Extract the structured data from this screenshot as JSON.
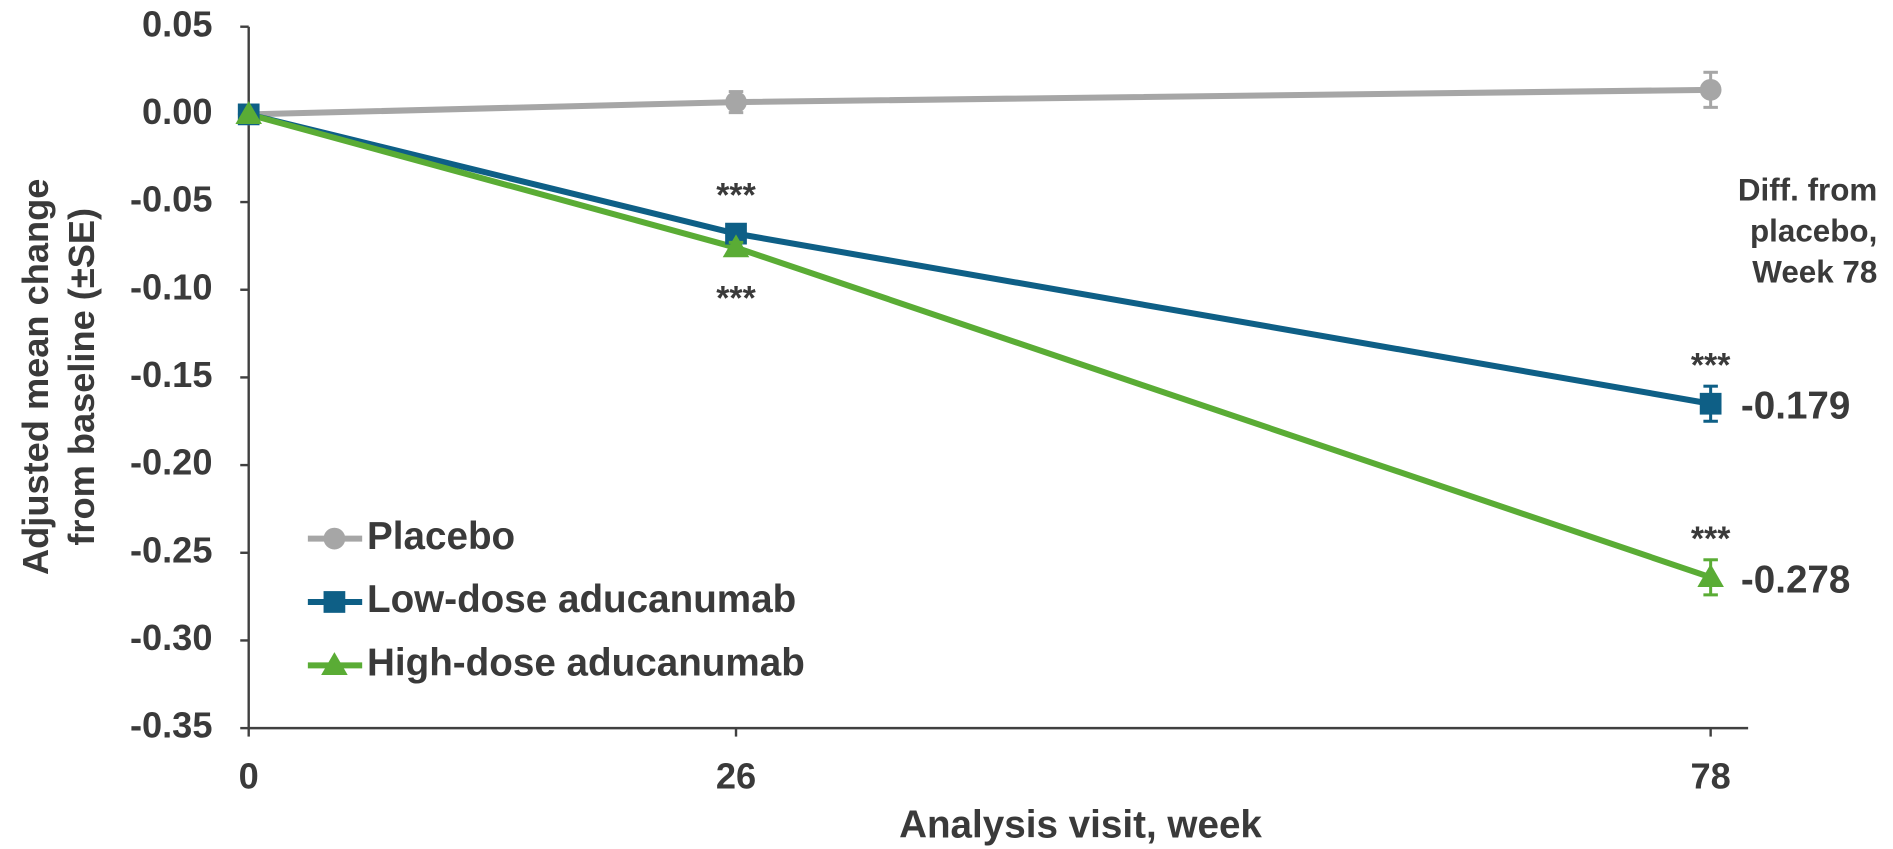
{
  "chart_data": {
    "type": "line",
    "y_label": [
      "Adjusted mean change",
      "from baseline (±SE)"
    ],
    "x_label": "Analysis visit, week",
    "x": [
      0,
      26,
      78
    ],
    "xlim": [
      0,
      80
    ],
    "xticks": [
      0,
      26,
      78
    ],
    "ylim": [
      -0.35,
      0.05
    ],
    "yticks": [
      0.05,
      {
        "value": 0,
        "label": "0.00"
      },
      -0.05,
      {
        "value": -0.1,
        "label": "-0.10"
      },
      -0.15,
      {
        "value": -0.2,
        "label": "-0.20"
      },
      -0.25,
      {
        "value": -0.3,
        "label": "-0.30"
      },
      -0.35
    ],
    "legend": "lower left",
    "annotation_lines": [
      "Diff. from",
      "placebo,",
      "Week 78"
    ],
    "series": [
      {
        "name": "Placebo",
        "color": "#a6a6a6",
        "marker": "circle",
        "values": [
          0,
          0.007,
          0.014
        ],
        "errors": [
          null,
          0.006,
          0.01
        ]
      },
      {
        "name": "Low-dose aducanumab",
        "color": "#0e5f86",
        "marker": "square",
        "values": [
          0,
          -0.068,
          -0.165
        ],
        "errors": [
          null,
          0.004,
          0.01
        ],
        "significance": [
          null,
          "***",
          "***"
        ],
        "difference": -0.179
      },
      {
        "name": "High-dose aducanumab",
        "color": "#5aac35",
        "marker": "triangle",
        "values": [
          0,
          -0.076,
          -0.264
        ],
        "errors": [
          null,
          0.003,
          0.01
        ],
        "significance": [
          null,
          "***",
          "***"
        ],
        "difference": -0.278
      }
    ]
  }
}
